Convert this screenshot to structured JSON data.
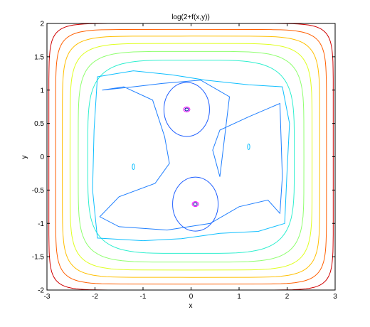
{
  "chart_data": {
    "type": "contour",
    "title": "log(2+f(x,y))",
    "xlabel": "x",
    "ylabel": "y",
    "xlim": [
      -3,
      3
    ],
    "ylim": [
      -2,
      2
    ],
    "x_ticks": [
      "-3",
      "-2",
      "-1",
      "0",
      "1",
      "2",
      "3"
    ],
    "y_ticks": [
      "-2",
      "-1.5",
      "-1",
      "-0.5",
      "0",
      "0.5",
      "1",
      "1.5",
      "2"
    ],
    "grid": false,
    "legend": "none",
    "colormap": "jet",
    "minima": [
      {
        "x": -0.09,
        "y": 0.71
      },
      {
        "x": 0.09,
        "y": -0.71
      }
    ],
    "contour_levels": [
      {
        "color": "#00009f",
        "shape": "two small closed loops around each minimum"
      },
      {
        "color": "#1f5fff",
        "shape": "closed curves around each minimum"
      },
      {
        "color": "#1f7fff",
        "shape": "dumbbell-shaped curve enclosing both minima"
      },
      {
        "color": "#0fbfff",
        "shape": "rounded square, with small loops near (-1.2,-0.15) and (1.2,0.15)"
      },
      {
        "color": "#2fefcf",
        "shape": "rounded square"
      },
      {
        "color": "#8fff6f",
        "shape": "rounded square"
      },
      {
        "color": "#dfff1f",
        "shape": "rounded square"
      },
      {
        "color": "#ffbf00",
        "shape": "rounded square"
      },
      {
        "color": "#ff5f00",
        "shape": "rounded square"
      },
      {
        "color": "#cf0000",
        "shape": "rounded square, outermost"
      }
    ]
  }
}
